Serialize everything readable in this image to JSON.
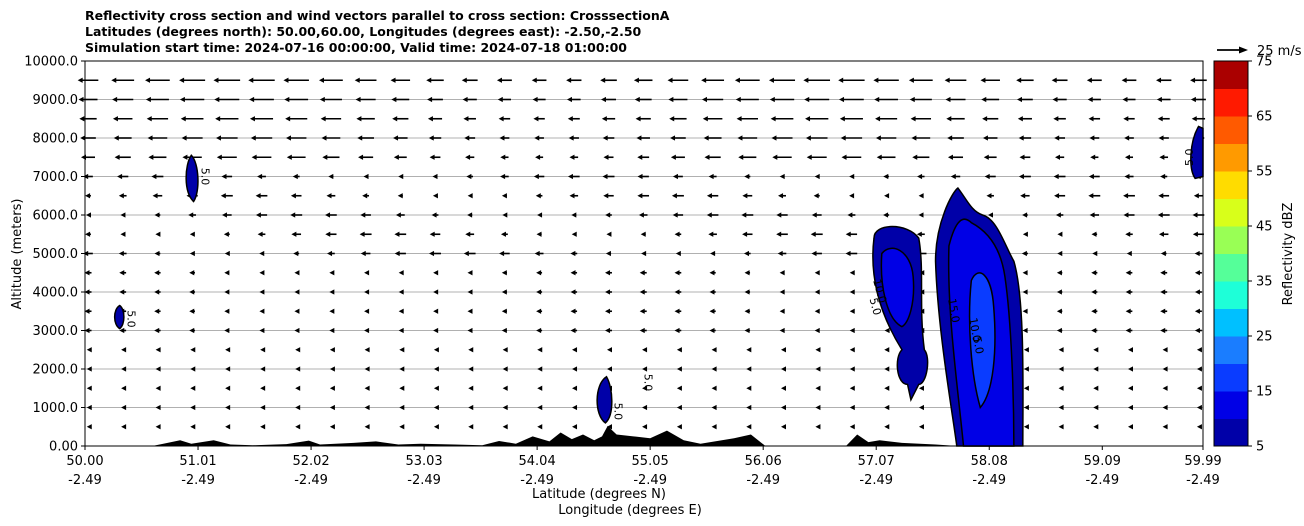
{
  "chart_data": {
    "type": "heatmap",
    "title_lines": [
      "Reflectivity cross section and wind vectors parallel to cross section: CrosssectionA",
      "Latitudes (degrees north): 50.00,60.00, Longitudes (degrees east): -2.50,-2.50",
      "Simulation start time: 2024-07-16 00:00:00, Valid time: 2024-07-18 01:00:00"
    ],
    "ylabel": "Altitude (meters)",
    "xlabel_lat": "Latitude (degrees N)",
    "xlabel_lon": "Longitude (degrees E)",
    "xlim": [
      50.0,
      59.99
    ],
    "ylim": [
      0,
      10000
    ],
    "y_ticks": [
      {
        "value": 0,
        "label": "0.00"
      },
      {
        "value": 1000,
        "label": "1000.0"
      },
      {
        "value": 2000,
        "label": "2000.0"
      },
      {
        "value": 3000,
        "label": "3000.0"
      },
      {
        "value": 4000,
        "label": "4000.0"
      },
      {
        "value": 5000,
        "label": "5000.0"
      },
      {
        "value": 6000,
        "label": "6000.0"
      },
      {
        "value": 7000,
        "label": "7000.0"
      },
      {
        "value": 8000,
        "label": "8000.0"
      },
      {
        "value": 9000,
        "label": "9000.0"
      },
      {
        "value": 10000,
        "label": "10000.0"
      }
    ],
    "x_ticks": [
      {
        "lat": 50.0,
        "lat_label": "50.00",
        "lon_label": "-2.49"
      },
      {
        "lat": 51.01,
        "lat_label": "51.01",
        "lon_label": "-2.49"
      },
      {
        "lat": 52.02,
        "lat_label": "52.02",
        "lon_label": "-2.49"
      },
      {
        "lat": 53.03,
        "lat_label": "53.03",
        "lon_label": "-2.49"
      },
      {
        "lat": 54.04,
        "lat_label": "54.04",
        "lon_label": "-2.49"
      },
      {
        "lat": 55.05,
        "lat_label": "55.05",
        "lon_label": "-2.49"
      },
      {
        "lat": 56.06,
        "lat_label": "56.06",
        "lon_label": "-2.49"
      },
      {
        "lat": 57.07,
        "lat_label": "57.07",
        "lon_label": "-2.49"
      },
      {
        "lat": 58.08,
        "lat_label": "58.08",
        "lon_label": "-2.49"
      },
      {
        "lat": 59.09,
        "lat_label": "59.09",
        "lon_label": "-2.49"
      },
      {
        "lat": 59.99,
        "lat_label": "59.99",
        "lon_label": "-2.49"
      }
    ],
    "grid_horizontal": true,
    "colorbar": {
      "label": "Reflectivity dBZ",
      "min": 5,
      "max": 75,
      "tick_values": [
        5,
        15,
        25,
        35,
        45,
        55,
        65,
        75
      ],
      "tick_labels": [
        "5",
        "15",
        "25",
        "35",
        "45",
        "55",
        "65",
        "75"
      ],
      "colors": [
        "#0000a8",
        "#0000e6",
        "#0a3cff",
        "#1a7dff",
        "#00c0ff",
        "#1effd8",
        "#55ff99",
        "#99ff55",
        "#d8ff1a",
        "#ffdc00",
        "#ff9a00",
        "#ff5a00",
        "#ff1a00",
        "#aa0000"
      ]
    },
    "wind_key": {
      "label": "25 m/s",
      "speed": 25
    },
    "contour_level_label": "5.0",
    "contour_labels": [
      "5.0",
      "5.0",
      "5.0",
      "5.0",
      "5.0",
      "10.0",
      "5.0",
      "15.0",
      "10.0",
      "5.0"
    ],
    "echoes": [
      {
        "lat_center": 50.31,
        "alt_bottom": 3050,
        "alt_top": 3650,
        "max_dbz": 5
      },
      {
        "lat_center": 50.95,
        "alt_bottom": 6350,
        "alt_top": 7550,
        "max_dbz": 5
      },
      {
        "lat_center": 54.65,
        "alt_bottom": 600,
        "alt_top": 1800,
        "max_dbz": 5
      },
      {
        "lat_center": 57.33,
        "alt_bottom": 1200,
        "alt_top": 5800,
        "max_dbz": 15
      },
      {
        "lat_center": 58.02,
        "alt_bottom": 0,
        "alt_top": 6700,
        "max_dbz": 20
      },
      {
        "lat_center": 59.95,
        "alt_bottom": 6950,
        "alt_top": 8300,
        "max_dbz": 5
      }
    ],
    "terrain_max_alt": 500
  }
}
